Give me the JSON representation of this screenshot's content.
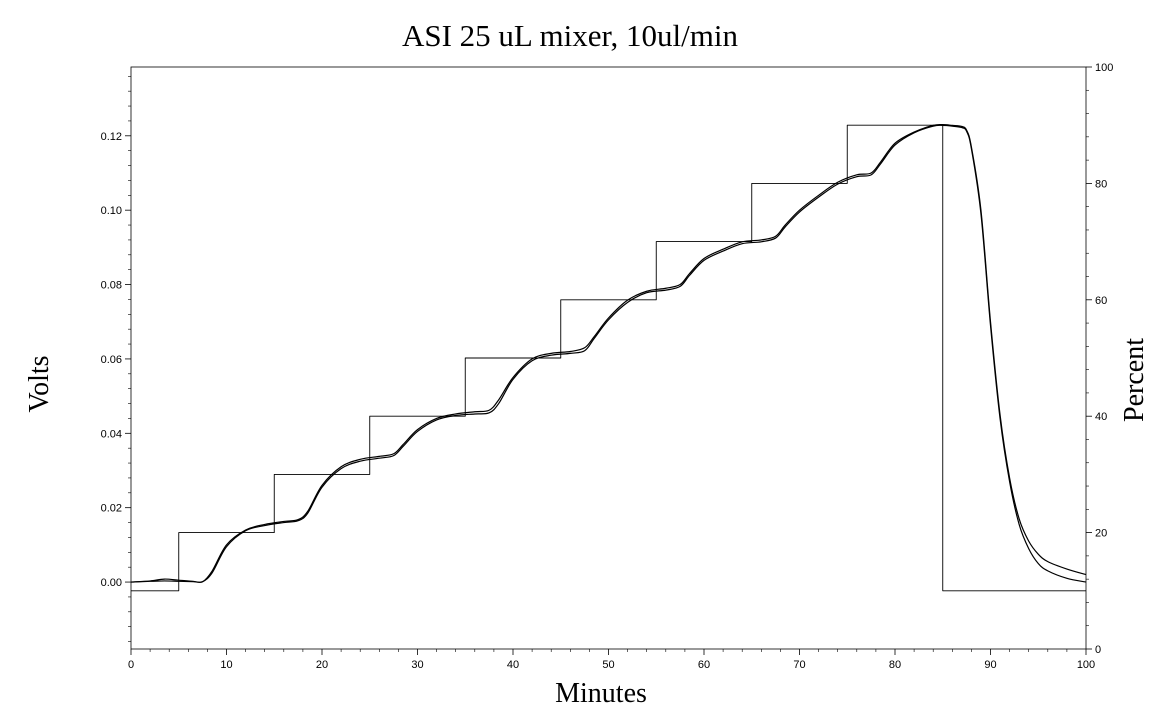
{
  "chart_data": {
    "type": "line",
    "title": "ASI 25 uL mixer, 10ul/min",
    "xlabel": "Minutes",
    "ylabel_left": "Volts",
    "ylabel_right": "Percent",
    "xlim": [
      0,
      100
    ],
    "ylim_left": [
      -0.018,
      0.1385
    ],
    "ylim_right": [
      0,
      100
    ],
    "x_ticks": [
      0,
      10,
      20,
      30,
      40,
      50,
      60,
      70,
      80,
      90,
      100
    ],
    "y_left_ticks": [
      0.0,
      0.02,
      0.04,
      0.06,
      0.08,
      0.1,
      0.12
    ],
    "y_left_tick_labels": [
      "0.00",
      "0.02",
      "0.04",
      "0.06",
      "0.08",
      "0.10",
      "0.12"
    ],
    "y_right_ticks": [
      0,
      20,
      40,
      60,
      80,
      100
    ],
    "grid": false,
    "legend": "none",
    "line_color": "#000000",
    "series": [
      {
        "axis": "right",
        "style": "step",
        "x": [
          0,
          5,
          5,
          15,
          15,
          25,
          25,
          35,
          35,
          45,
          45,
          55,
          55,
          65,
          65,
          75,
          75,
          85,
          85,
          100
        ],
        "y": [
          10,
          10,
          20,
          20,
          30,
          30,
          40,
          40,
          50,
          50,
          60,
          60,
          70,
          70,
          80,
          80,
          90,
          90,
          10,
          10
        ]
      },
      {
        "axis": "left",
        "x": [
          0,
          2,
          3.5,
          5,
          6.5,
          7.5,
          8.5,
          10,
          12,
          14,
          16,
          17.5,
          18.5,
          20,
          22,
          24,
          26,
          27.5,
          28.5,
          30,
          32,
          34,
          36,
          37.5,
          38.5,
          40,
          42,
          44,
          46,
          47.5,
          48.5,
          50,
          52,
          54,
          56,
          57.5,
          58.5,
          60,
          62,
          64,
          66,
          67.5,
          68.5,
          70,
          72,
          74,
          76,
          77.5,
          78.5,
          80,
          82,
          84,
          85,
          86,
          87,
          87.5,
          88,
          89,
          90,
          91,
          92,
          93,
          94,
          95,
          96,
          98,
          100
        ],
        "y": [
          0.0,
          0.0003,
          0.0008,
          0.0005,
          0.0002,
          0.0001,
          0.003,
          0.01,
          0.014,
          0.0155,
          0.0163,
          0.0168,
          0.019,
          0.026,
          0.031,
          0.033,
          0.0338,
          0.0345,
          0.037,
          0.041,
          0.044,
          0.0452,
          0.0458,
          0.0462,
          0.049,
          0.055,
          0.06,
          0.0615,
          0.062,
          0.063,
          0.066,
          0.071,
          0.0758,
          0.0782,
          0.079,
          0.08,
          0.083,
          0.087,
          0.0895,
          0.0915,
          0.092,
          0.093,
          0.096,
          0.1,
          0.104,
          0.1075,
          0.1095,
          0.11,
          0.113,
          0.118,
          0.121,
          0.1228,
          0.123,
          0.1228,
          0.1225,
          0.1215,
          0.117,
          0.1,
          0.07,
          0.045,
          0.028,
          0.017,
          0.011,
          0.0075,
          0.0055,
          0.0035,
          0.002
        ]
      },
      {
        "axis": "left",
        "x": [
          0,
          2,
          3.5,
          5,
          6.5,
          7.5,
          8.5,
          10,
          12,
          14,
          16,
          17.5,
          18.5,
          20,
          22,
          24,
          26,
          27.5,
          28.5,
          30,
          32,
          34,
          36,
          37.5,
          38.5,
          40,
          42,
          44,
          46,
          47.5,
          48.5,
          50,
          52,
          54,
          56,
          57.5,
          58.5,
          60,
          62,
          64,
          66,
          67.5,
          68.5,
          70,
          72,
          74,
          76,
          77.5,
          78.5,
          80,
          82,
          84,
          85,
          86,
          87,
          87.5,
          88,
          89,
          90,
          91,
          92,
          93,
          94,
          95,
          96,
          98,
          100
        ],
        "y": [
          0.0,
          0.0002,
          0.0003,
          0.0002,
          0.0001,
          0.0001,
          0.0025,
          0.0095,
          0.0138,
          0.0152,
          0.016,
          0.0165,
          0.0185,
          0.0255,
          0.0305,
          0.0325,
          0.0333,
          0.034,
          0.0365,
          0.0405,
          0.0436,
          0.0448,
          0.0452,
          0.0455,
          0.048,
          0.0545,
          0.0595,
          0.061,
          0.0615,
          0.0622,
          0.0655,
          0.0705,
          0.0752,
          0.0778,
          0.0785,
          0.0795,
          0.0825,
          0.0865,
          0.089,
          0.091,
          0.0915,
          0.0925,
          0.0955,
          0.0995,
          0.1035,
          0.107,
          0.109,
          0.1095,
          0.1125,
          0.1175,
          0.1208,
          0.1226,
          0.1228,
          0.1226,
          0.1222,
          0.1212,
          0.1165,
          0.099,
          0.069,
          0.044,
          0.027,
          0.0155,
          0.009,
          0.005,
          0.003,
          0.001,
          0.0
        ]
      }
    ]
  }
}
